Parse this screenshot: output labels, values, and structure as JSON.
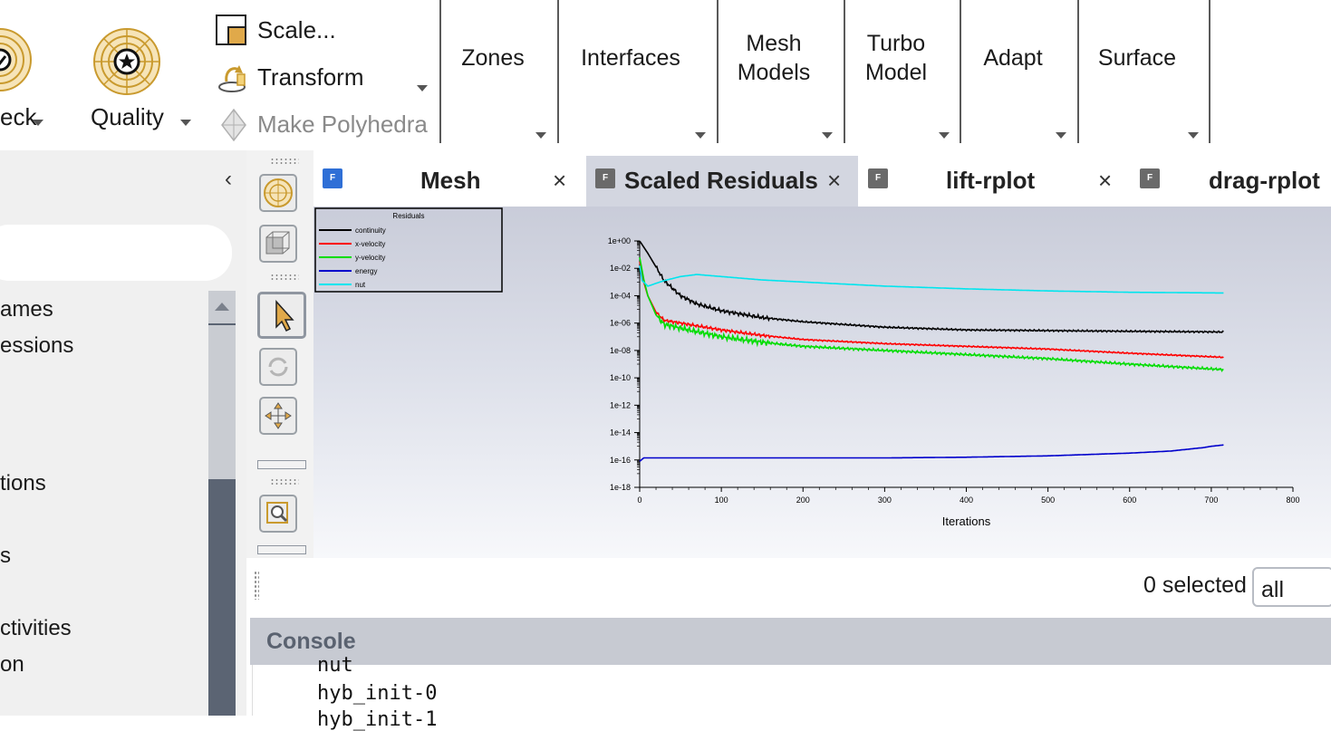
{
  "ribbon": {
    "check_label": "eck",
    "quality_label": "Quality",
    "scale_label": "Scale...",
    "transform_label": "Transform",
    "make_polyhedra_label": "Make Polyhedra",
    "groups": [
      "Zones",
      "Interfaces",
      "Mesh\nModels",
      "Turbo\nModel",
      "Adapt",
      "Surface"
    ]
  },
  "tree": {
    "collapse_glyph": "‹",
    "items": [
      "ames",
      "essions",
      "tions",
      "s",
      "ctivities",
      "on"
    ]
  },
  "tabs": [
    {
      "title": "Mesh",
      "icon_color": "#2f6fd6",
      "active": false
    },
    {
      "title": "Scaled Residuals",
      "icon_color": "#6a6a6a",
      "active": true
    },
    {
      "title": "lift-rplot",
      "icon_color": "#6a6a6a",
      "active": false
    },
    {
      "title": "drag-rplot",
      "icon_color": "#6a6a6a",
      "active": false
    }
  ],
  "tab_icon_letter": "F",
  "tab_close_glyph": "×",
  "selection": {
    "count_label": "0 selected",
    "filter_value": "all"
  },
  "console": {
    "title": "Console",
    "lines": [
      "nut",
      "hyb_init-0",
      "hyb_init-1"
    ]
  },
  "colors": {
    "accent_gold": "#c99a2e",
    "tab_active_bg": "#d3d6e0",
    "console_header": "#c7cad2"
  },
  "chart_data": {
    "type": "line",
    "legend_title": "Residuals",
    "xlabel": "Iterations",
    "ylabel": "",
    "xlim": [
      0,
      800
    ],
    "ylim_exp": [
      -18,
      0
    ],
    "y_scale": "log",
    "xticks": [
      0,
      100,
      200,
      300,
      400,
      500,
      600,
      700,
      800
    ],
    "yticks": [
      "1e+00",
      "1e-02",
      "1e-04",
      "1e-06",
      "1e-08",
      "1e-10",
      "1e-12",
      "1e-14",
      "1e-16",
      "1e-18"
    ],
    "legend_position": "top-left",
    "series": [
      {
        "name": "continuity",
        "color": "#000000",
        "noise": 0.15,
        "x": [
          0,
          10,
          20,
          30,
          50,
          70,
          100,
          150,
          200,
          300,
          400,
          500,
          600,
          715
        ],
        "log10y": [
          0,
          -0.9,
          -1.9,
          -2.9,
          -4.0,
          -4.6,
          -5.1,
          -5.6,
          -5.9,
          -6.3,
          -6.5,
          -6.55,
          -6.6,
          -6.65
        ]
      },
      {
        "name": "x-velocity",
        "color": "#ff0000",
        "noise": 0.12,
        "x": [
          0,
          5,
          10,
          20,
          30,
          60,
          100,
          150,
          200,
          300,
          400,
          500,
          600,
          715
        ],
        "log10y": [
          -1.5,
          -3.0,
          -4.0,
          -5.2,
          -5.8,
          -6.1,
          -6.5,
          -6.9,
          -7.2,
          -7.5,
          -7.7,
          -7.9,
          -8.2,
          -8.5
        ]
      },
      {
        "name": "y-velocity",
        "color": "#00dd00",
        "noise": 0.22,
        "x": [
          0,
          5,
          10,
          20,
          30,
          60,
          100,
          150,
          200,
          300,
          400,
          500,
          600,
          715
        ],
        "log10y": [
          -1.2,
          -2.8,
          -4.0,
          -5.4,
          -6.1,
          -6.5,
          -7.0,
          -7.4,
          -7.7,
          -8.0,
          -8.3,
          -8.6,
          -9.0,
          -9.4
        ]
      },
      {
        "name": "energy",
        "color": "#0000cc",
        "noise": 0.0,
        "x": [
          0,
          5,
          100,
          200,
          300,
          400,
          500,
          600,
          650,
          690,
          700,
          715
        ],
        "log10y": [
          -16.1,
          -15.85,
          -15.85,
          -15.85,
          -15.85,
          -15.8,
          -15.7,
          -15.5,
          -15.35,
          -15.1,
          -15.0,
          -14.9
        ]
      },
      {
        "name": "nut",
        "color": "#00e5ee",
        "noise": 0.0,
        "x": [
          0,
          3,
          10,
          30,
          50,
          70,
          100,
          150,
          200,
          300,
          400,
          500,
          600,
          715
        ],
        "log10y": [
          -1.8,
          -2.9,
          -3.3,
          -2.9,
          -2.6,
          -2.45,
          -2.6,
          -2.85,
          -3.0,
          -3.3,
          -3.5,
          -3.65,
          -3.75,
          -3.8
        ]
      }
    ]
  }
}
